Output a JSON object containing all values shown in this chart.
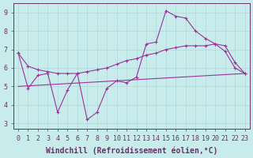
{
  "xlabel": "Windchill (Refroidissement éolien,°C)",
  "background_color": "#c8ecec",
  "grid_color": "#b0d8d8",
  "line_color": "#993399",
  "xlim_min": -0.5,
  "xlim_max": 23.5,
  "ylim": [
    2.7,
    9.5
  ],
  "yticks": [
    3,
    4,
    5,
    6,
    7,
    8,
    9
  ],
  "xticks": [
    0,
    1,
    2,
    3,
    4,
    5,
    6,
    7,
    8,
    9,
    10,
    11,
    12,
    13,
    14,
    15,
    16,
    17,
    18,
    19,
    20,
    21,
    22,
    23
  ],
  "line1_x": [
    0,
    1,
    2,
    3,
    4,
    5,
    6,
    7,
    8,
    9,
    10,
    11,
    12,
    13,
    14,
    15,
    16,
    17,
    18,
    19,
    20,
    21,
    22,
    23
  ],
  "line1_y": [
    6.8,
    4.9,
    5.6,
    5.7,
    3.6,
    4.8,
    5.7,
    3.2,
    3.6,
    4.9,
    5.3,
    5.2,
    5.5,
    7.3,
    7.4,
    9.1,
    8.8,
    8.7,
    8.0,
    7.6,
    7.3,
    6.9,
    6.0,
    5.7
  ],
  "line2_x": [
    0,
    23
  ],
  "line2_y": [
    5.0,
    5.7
  ],
  "line3_x": [
    0,
    1,
    2,
    3,
    4,
    5,
    6,
    7,
    8,
    9,
    10,
    11,
    12,
    13,
    14,
    15,
    16,
    17,
    18,
    19,
    20,
    21,
    22,
    23
  ],
  "line3_y": [
    6.8,
    6.1,
    5.9,
    5.8,
    5.7,
    5.7,
    5.7,
    5.8,
    5.9,
    6.0,
    6.2,
    6.4,
    6.5,
    6.7,
    6.8,
    7.0,
    7.1,
    7.2,
    7.2,
    7.2,
    7.3,
    7.2,
    6.3,
    5.7
  ],
  "font_color": "#663366",
  "tick_fontsize": 6.0,
  "xlabel_fontsize": 7.0
}
